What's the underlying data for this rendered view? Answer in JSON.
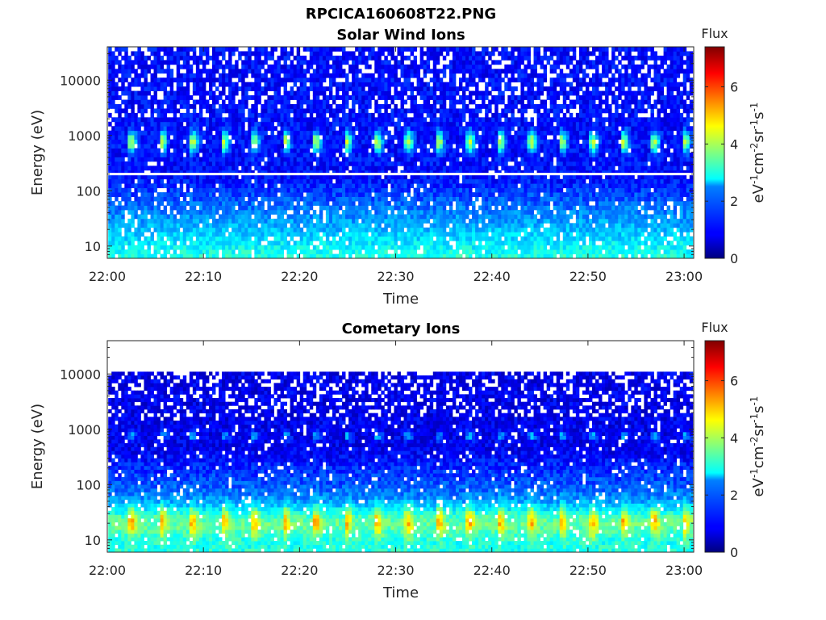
{
  "figure_title": "RPCICA160608T22.PNG",
  "chart_data": [
    {
      "type": "heatmap",
      "title": "Solar Wind Ions",
      "xlabel": "Time",
      "ylabel": "Energy (eV)",
      "x_ticks": [
        "22:00",
        "22:10",
        "22:20",
        "22:30",
        "22:40",
        "22:50",
        "23:00"
      ],
      "x_range": [
        "22:00",
        "23:01"
      ],
      "y_scale": "log",
      "y_ticks": [
        "10",
        "100",
        "1000",
        "10000"
      ],
      "y_range": [
        6,
        40000
      ],
      "colorbar": {
        "title": "Flux",
        "label": "eV-1cm-2sr-1s-1",
        "label_parts": [
          "eV",
          "-1",
          "cm",
          "-2",
          "sr",
          "-1",
          "s",
          "-1"
        ],
        "ticks": [
          "0",
          "2",
          "4",
          "6"
        ],
        "range": [
          0,
          7.4
        ],
        "colormap": "jet"
      },
      "reference_line_energy_eV": 200,
      "peak_energy_eV": 700,
      "pulse_period_min": 3.2,
      "grid": false
    },
    {
      "type": "heatmap",
      "title": "Cometary Ions",
      "xlabel": "Time",
      "ylabel": "Energy (eV)",
      "x_ticks": [
        "22:00",
        "22:10",
        "22:20",
        "22:30",
        "22:40",
        "22:50",
        "23:00"
      ],
      "x_range": [
        "22:00",
        "23:01"
      ],
      "y_scale": "log",
      "y_ticks": [
        "10",
        "100",
        "1000",
        "10000"
      ],
      "y_range": [
        6,
        40000
      ],
      "colorbar": {
        "title": "Flux",
        "label": "eV-1cm-2sr-1s-1",
        "label_parts": [
          "eV",
          "-1",
          "cm",
          "-2",
          "sr",
          "-1",
          "s",
          "-1"
        ],
        "ticks": [
          "0",
          "2",
          "4",
          "6"
        ],
        "range": [
          0,
          7.4
        ],
        "colormap": "jet"
      },
      "peak_energy_eV": 20,
      "data_max_energy_eV": 11000,
      "pulse_period_min": 3.2,
      "grid": false
    }
  ]
}
